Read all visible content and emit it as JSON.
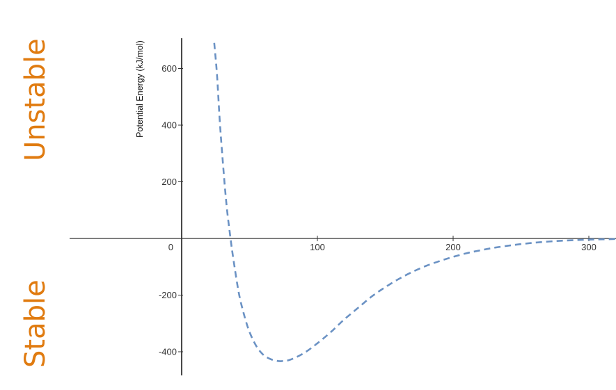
{
  "side_labels": {
    "top": "Unstable",
    "bottom": "Stable"
  },
  "colors": {
    "curve": "#6b92c4",
    "axis": "#333333",
    "side_label": "#e07b10"
  },
  "chart_data": {
    "type": "line",
    "title": "",
    "xlabel": "",
    "ylabel": "Potential Energy (kJ/mol)",
    "xlim": [
      -80,
      320
    ],
    "ylim": [
      -480,
      700
    ],
    "x_ticks": [
      0,
      100,
      200,
      300
    ],
    "x_tick_labels": [
      "0",
      "100",
      "200",
      "300"
    ],
    "y_ticks": [
      -400,
      -200,
      200,
      400,
      600
    ],
    "y_tick_labels": [
      "-400",
      "-200",
      "200",
      "400",
      "600"
    ],
    "grid": false,
    "line_style": "dashed",
    "series": [
      {
        "x": [
          24,
          26,
          28,
          30,
          33,
          36,
          38,
          42,
          46,
          50,
          55,
          60,
          65,
          70,
          74,
          80,
          90,
          100,
          110,
          120,
          130,
          140,
          150,
          160,
          170,
          180,
          190,
          200,
          210,
          220,
          230,
          240,
          250,
          260,
          270,
          280,
          290,
          300,
          310,
          320
        ],
        "y": [
          690,
          580,
          420,
          290,
          120,
          0,
          -70,
          -190,
          -270,
          -330,
          -380,
          -410,
          -425,
          -432,
          -433,
          -428,
          -405,
          -370,
          -330,
          -285,
          -245,
          -205,
          -172,
          -143,
          -118,
          -97,
          -80,
          -65,
          -52,
          -42,
          -33,
          -26,
          -20,
          -15,
          -11,
          -8,
          -6,
          -4,
          -3,
          -2
        ]
      }
    ]
  }
}
